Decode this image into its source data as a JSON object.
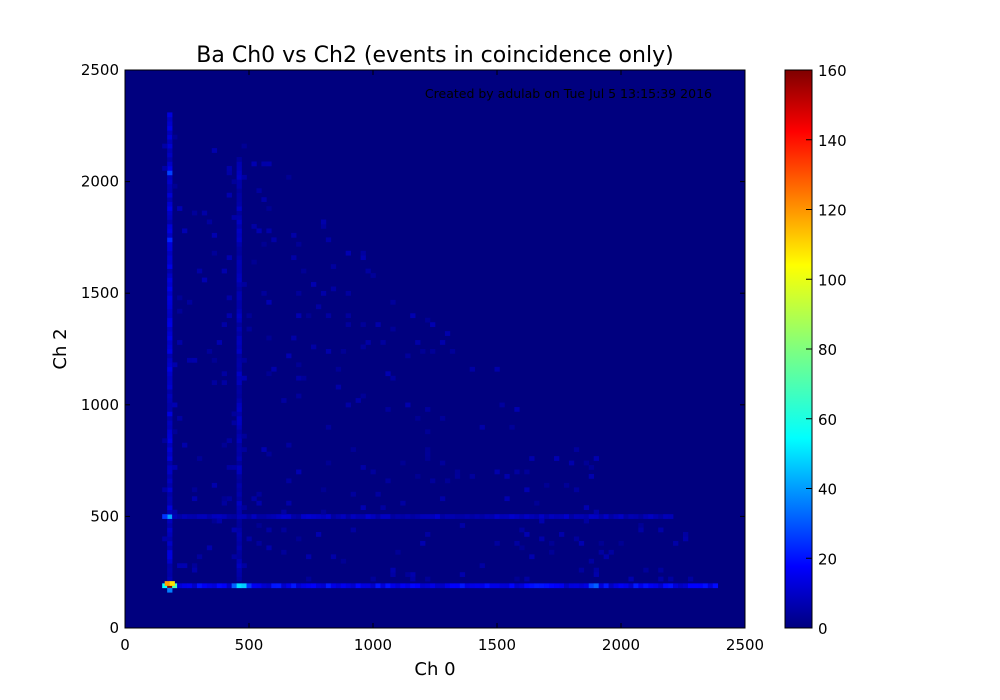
{
  "chart_data": {
    "type": "heatmap",
    "title": "Ba Ch0 vs Ch2 (events in coincidence only)",
    "xlabel": "Ch 0",
    "ylabel": "Ch 2",
    "xlim": [
      0,
      2500
    ],
    "ylim": [
      0,
      2500
    ],
    "x_ticks": [
      "0",
      "500",
      "1000",
      "1500",
      "2000",
      "2500"
    ],
    "y_ticks": [
      "0",
      "500",
      "1000",
      "1500",
      "2000",
      "2500"
    ],
    "annotation": "Created by adulab on Tue Jul  5 13:15:39 2016",
    "colorbar": {
      "range": [
        0,
        160
      ],
      "ticks": [
        "0",
        "20",
        "40",
        "60",
        "80",
        "100",
        "120",
        "140",
        "160"
      ],
      "colormap": "jet"
    },
    "background_color": "#00007f",
    "bin_size": 20,
    "hotspots": [
      {
        "x": 180,
        "y": 190,
        "count": 160
      },
      {
        "x": 170,
        "y": 200,
        "count": 115
      },
      {
        "x": 190,
        "y": 200,
        "count": 105
      },
      {
        "x": 200,
        "y": 190,
        "count": 70
      },
      {
        "x": 160,
        "y": 190,
        "count": 60
      },
      {
        "x": 180,
        "y": 170,
        "count": 40
      },
      {
        "x": 460,
        "y": 190,
        "count": 55
      },
      {
        "x": 480,
        "y": 190,
        "count": 52
      },
      {
        "x": 440,
        "y": 190,
        "count": 35
      },
      {
        "x": 500,
        "y": 190,
        "count": 28
      },
      {
        "x": 180,
        "y": 500,
        "count": 45
      },
      {
        "x": 160,
        "y": 500,
        "count": 28
      },
      {
        "x": 180,
        "y": 2040,
        "count": 30
      },
      {
        "x": 180,
        "y": 1740,
        "count": 25
      },
      {
        "x": 1900,
        "y": 190,
        "count": 35
      },
      {
        "x": 1880,
        "y": 190,
        "count": 30
      }
    ]
  }
}
